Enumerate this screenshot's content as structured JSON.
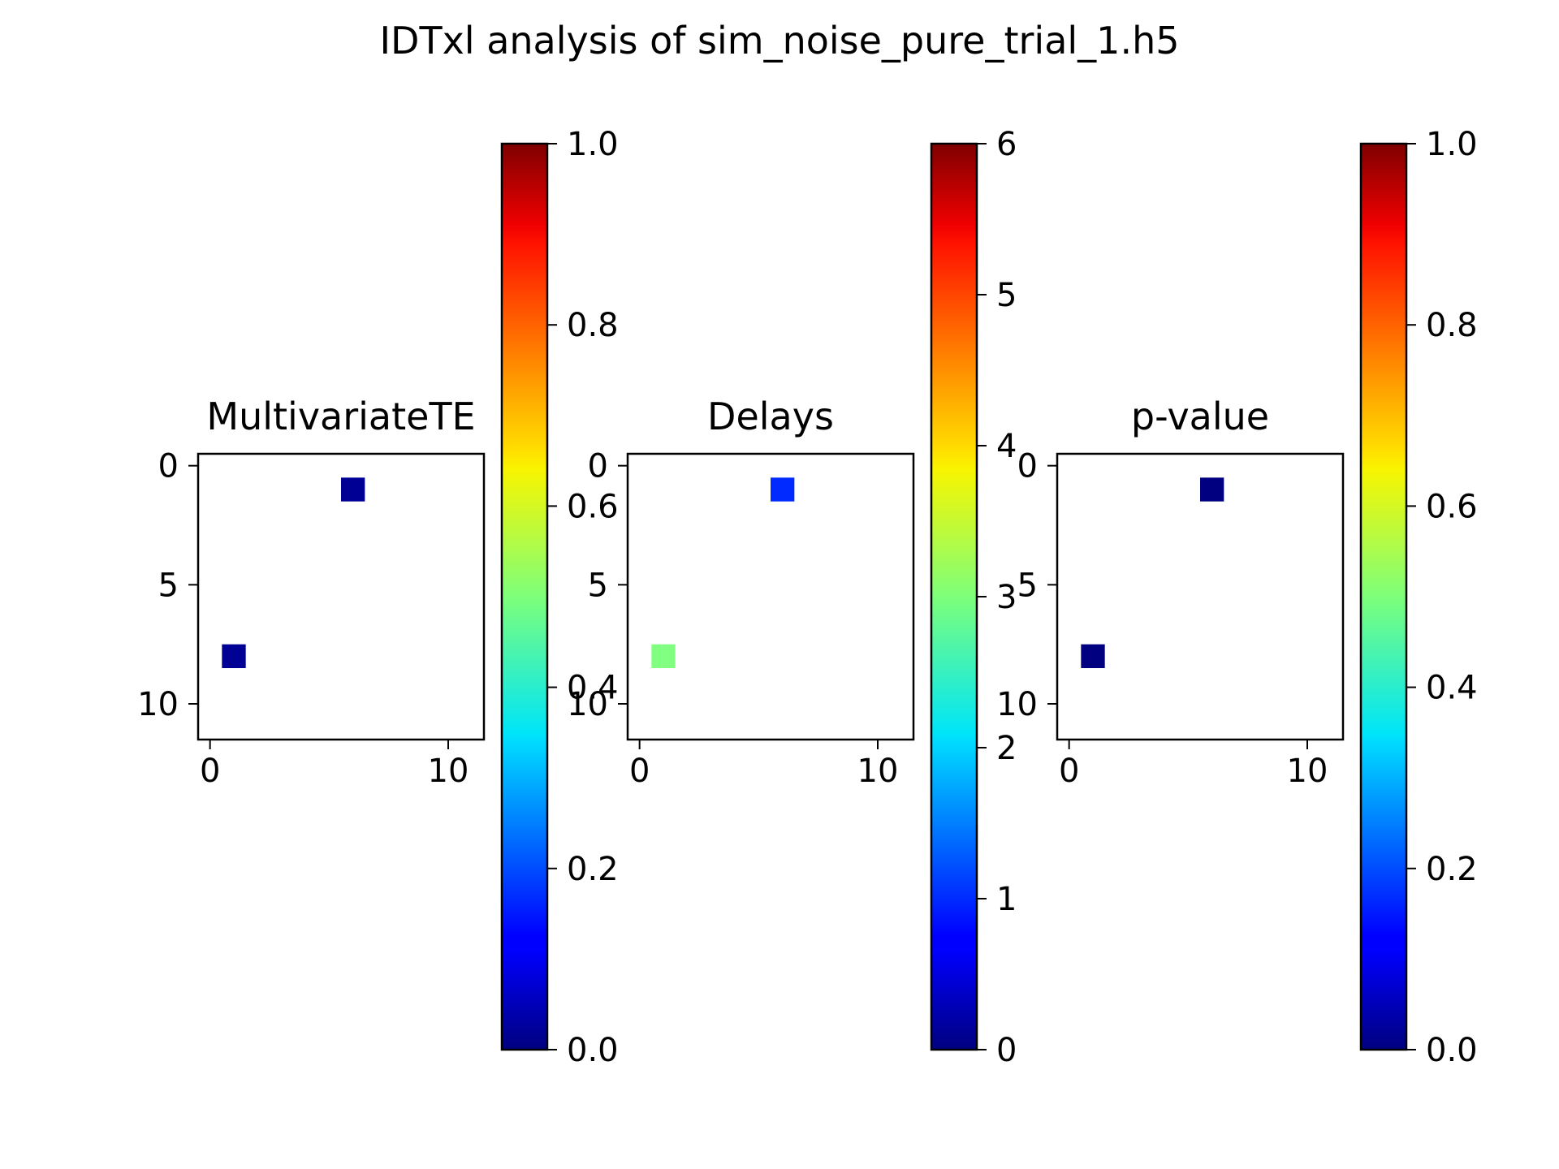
{
  "figure": {
    "title": "IDTxl analysis of sim_noise_pure_trial_1.h5"
  },
  "chart_data": [
    {
      "type": "heatmap",
      "title": "MultivariateTE",
      "colormap": "jet",
      "matrix_size": 12,
      "xlim": [
        -0.5,
        11.5
      ],
      "ylim": [
        11.5,
        -0.5
      ],
      "xticks": [
        0,
        10
      ],
      "yticks": [
        0,
        5,
        10
      ],
      "cells": [
        {
          "row": 1,
          "col": 6,
          "value": 0.02
        },
        {
          "row": 8,
          "col": 1,
          "value": 0.02
        }
      ],
      "colorbar": {
        "range": [
          0.0,
          1.0
        ],
        "ticks": [
          0.0,
          0.2,
          0.4,
          0.6,
          0.8,
          1.0
        ],
        "tick_labels": [
          "0.0",
          "0.2",
          "0.4",
          "0.6",
          "0.8",
          "1.0"
        ]
      }
    },
    {
      "type": "heatmap",
      "title": "Delays",
      "colormap": "jet",
      "matrix_size": 12,
      "xlim": [
        -0.5,
        11.5
      ],
      "ylim": [
        11.5,
        -0.5
      ],
      "xticks": [
        0,
        10
      ],
      "yticks": [
        0,
        5,
        10
      ],
      "cells": [
        {
          "row": 1,
          "col": 6,
          "value": 1
        },
        {
          "row": 8,
          "col": 1,
          "value": 3
        }
      ],
      "colorbar": {
        "range": [
          0,
          6
        ],
        "ticks": [
          0,
          1,
          2,
          3,
          4,
          5,
          6
        ],
        "tick_labels": [
          "0",
          "1",
          "2",
          "3",
          "4",
          "5",
          "6"
        ]
      }
    },
    {
      "type": "heatmap",
      "title": "p-value",
      "colormap": "jet",
      "matrix_size": 12,
      "xlim": [
        -0.5,
        11.5
      ],
      "ylim": [
        11.5,
        -0.5
      ],
      "xticks": [
        0,
        10
      ],
      "yticks": [
        0,
        5,
        10
      ],
      "cells": [
        {
          "row": 1,
          "col": 6,
          "value": 0.0
        },
        {
          "row": 8,
          "col": 1,
          "value": 0.0
        }
      ],
      "colorbar": {
        "range": [
          0.0,
          1.0
        ],
        "ticks": [
          0.0,
          0.2,
          0.4,
          0.6,
          0.8,
          1.0
        ],
        "tick_labels": [
          "0.0",
          "0.2",
          "0.4",
          "0.6",
          "0.8",
          "1.0"
        ]
      }
    }
  ]
}
